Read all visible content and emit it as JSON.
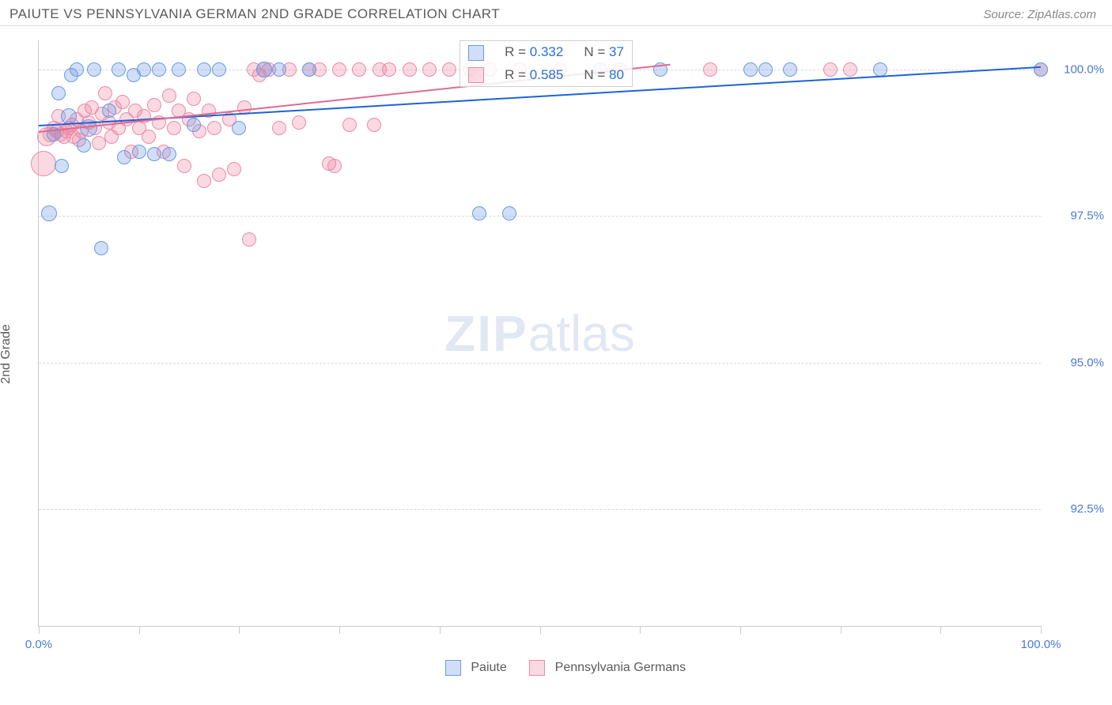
{
  "header": {
    "title": "PAIUTE VS PENNSYLVANIA GERMAN 2ND GRADE CORRELATION CHART",
    "source_prefix": "Source: ",
    "source_name": "ZipAtlas.com"
  },
  "chart": {
    "ylabel": "2nd Grade",
    "watermark_bold": "ZIP",
    "watermark_light": "atlas",
    "xlim": [
      0,
      100
    ],
    "ylim": [
      90.5,
      100.5
    ],
    "xtick_positions": [
      0,
      10,
      20,
      30,
      40,
      50,
      60,
      70,
      80,
      90,
      100
    ],
    "xtick_labels": {
      "0": "0.0%",
      "100": "100.0%"
    },
    "ytick_positions": [
      92.5,
      95.0,
      97.5,
      100.0
    ],
    "ytick_labels": [
      "92.5%",
      "95.0%",
      "97.5%",
      "100.0%"
    ],
    "grid_color": "#d8d8d8",
    "axis_color": "#cccccc",
    "background": "#ffffff",
    "series": [
      {
        "name": "Paiute",
        "fill": "rgba(100,150,230,0.30)",
        "stroke": "#6a9be0",
        "trend_color": "#1f62d6",
        "trend": {
          "x1": 0,
          "y1": 99.05,
          "x2": 100,
          "y2": 100.05
        },
        "stats": {
          "R": "0.332",
          "N": "37"
        },
        "points": [
          {
            "x": 1.0,
            "y": 97.55,
            "r": 10
          },
          {
            "x": 1.5,
            "y": 98.9,
            "r": 9
          },
          {
            "x": 2.0,
            "y": 99.6,
            "r": 9
          },
          {
            "x": 2.3,
            "y": 98.35,
            "r": 9
          },
          {
            "x": 3.0,
            "y": 99.2,
            "r": 10
          },
          {
            "x": 3.2,
            "y": 99.9,
            "r": 9
          },
          {
            "x": 3.8,
            "y": 100.0,
            "r": 9
          },
          {
            "x": 4.5,
            "y": 98.7,
            "r": 9
          },
          {
            "x": 5.0,
            "y": 99.0,
            "r": 11
          },
          {
            "x": 5.5,
            "y": 100.0,
            "r": 9
          },
          {
            "x": 6.2,
            "y": 96.95,
            "r": 9
          },
          {
            "x": 7.0,
            "y": 99.3,
            "r": 9
          },
          {
            "x": 8.0,
            "y": 100.0,
            "r": 9
          },
          {
            "x": 8.5,
            "y": 98.5,
            "r": 9
          },
          {
            "x": 9.5,
            "y": 99.9,
            "r": 9
          },
          {
            "x": 10.0,
            "y": 98.6,
            "r": 9
          },
          {
            "x": 10.5,
            "y": 100.0,
            "r": 9
          },
          {
            "x": 11.5,
            "y": 98.55,
            "r": 9
          },
          {
            "x": 12.0,
            "y": 100.0,
            "r": 9
          },
          {
            "x": 13.0,
            "y": 98.55,
            "r": 9
          },
          {
            "x": 14.0,
            "y": 100.0,
            "r": 9
          },
          {
            "x": 15.5,
            "y": 99.05,
            "r": 9
          },
          {
            "x": 16.5,
            "y": 100.0,
            "r": 9
          },
          {
            "x": 18.0,
            "y": 100.0,
            "r": 9
          },
          {
            "x": 20.0,
            "y": 99.0,
            "r": 9
          },
          {
            "x": 22.5,
            "y": 100.0,
            "r": 10
          },
          {
            "x": 24.0,
            "y": 100.0,
            "r": 9
          },
          {
            "x": 27.0,
            "y": 100.0,
            "r": 9
          },
          {
            "x": 44.0,
            "y": 97.55,
            "r": 9
          },
          {
            "x": 47.0,
            "y": 97.55,
            "r": 9
          },
          {
            "x": 56.0,
            "y": 100.0,
            "r": 9
          },
          {
            "x": 62.0,
            "y": 100.0,
            "r": 9
          },
          {
            "x": 71.0,
            "y": 100.0,
            "r": 9
          },
          {
            "x": 72.5,
            "y": 100.0,
            "r": 9
          },
          {
            "x": 75.0,
            "y": 100.0,
            "r": 9
          },
          {
            "x": 84.0,
            "y": 100.0,
            "r": 9
          },
          {
            "x": 100.0,
            "y": 100.0,
            "r": 9
          }
        ]
      },
      {
        "name": "Pennsylvania Germans",
        "fill": "rgba(240,130,160,0.30)",
        "stroke": "#e88ca8",
        "trend_color": "#e06a90",
        "trend": {
          "x1": 0,
          "y1": 98.95,
          "x2": 63,
          "y2": 100.1
        },
        "stats": {
          "R": "0.585",
          "N": "80"
        },
        "points": [
          {
            "x": 0.5,
            "y": 98.4,
            "r": 16
          },
          {
            "x": 0.8,
            "y": 98.85,
            "r": 12
          },
          {
            "x": 1.2,
            "y": 98.9,
            "r": 10
          },
          {
            "x": 1.5,
            "y": 99.0,
            "r": 9
          },
          {
            "x": 1.8,
            "y": 98.95,
            "r": 9
          },
          {
            "x": 2.0,
            "y": 99.2,
            "r": 9
          },
          {
            "x": 2.2,
            "y": 98.9,
            "r": 9
          },
          {
            "x": 2.5,
            "y": 98.85,
            "r": 9
          },
          {
            "x": 2.8,
            "y": 98.95,
            "r": 9
          },
          {
            "x": 3.0,
            "y": 99.0,
            "r": 9
          },
          {
            "x": 3.3,
            "y": 99.05,
            "r": 9
          },
          {
            "x": 3.5,
            "y": 98.85,
            "r": 9
          },
          {
            "x": 3.8,
            "y": 99.15,
            "r": 9
          },
          {
            "x": 4.0,
            "y": 98.8,
            "r": 9
          },
          {
            "x": 4.3,
            "y": 98.95,
            "r": 9
          },
          {
            "x": 4.6,
            "y": 99.3,
            "r": 9
          },
          {
            "x": 5.0,
            "y": 99.1,
            "r": 9
          },
          {
            "x": 5.3,
            "y": 99.35,
            "r": 9
          },
          {
            "x": 5.6,
            "y": 99.0,
            "r": 9
          },
          {
            "x": 6.0,
            "y": 98.75,
            "r": 9
          },
          {
            "x": 6.3,
            "y": 99.25,
            "r": 9
          },
          {
            "x": 6.6,
            "y": 99.6,
            "r": 9
          },
          {
            "x": 7.0,
            "y": 99.1,
            "r": 9
          },
          {
            "x": 7.3,
            "y": 98.85,
            "r": 9
          },
          {
            "x": 7.6,
            "y": 99.35,
            "r": 9
          },
          {
            "x": 8.0,
            "y": 99.0,
            "r": 9
          },
          {
            "x": 8.4,
            "y": 99.45,
            "r": 9
          },
          {
            "x": 8.8,
            "y": 99.15,
            "r": 9
          },
          {
            "x": 9.2,
            "y": 98.6,
            "r": 9
          },
          {
            "x": 9.6,
            "y": 99.3,
            "r": 9
          },
          {
            "x": 10.0,
            "y": 99.0,
            "r": 9
          },
          {
            "x": 10.5,
            "y": 99.2,
            "r": 9
          },
          {
            "x": 11.0,
            "y": 98.85,
            "r": 9
          },
          {
            "x": 11.5,
            "y": 99.4,
            "r": 9
          },
          {
            "x": 12.0,
            "y": 99.1,
            "r": 9
          },
          {
            "x": 12.5,
            "y": 98.6,
            "r": 9
          },
          {
            "x": 13.0,
            "y": 99.55,
            "r": 9
          },
          {
            "x": 13.5,
            "y": 99.0,
            "r": 9
          },
          {
            "x": 14.0,
            "y": 99.3,
            "r": 9
          },
          {
            "x": 14.5,
            "y": 98.35,
            "r": 9
          },
          {
            "x": 15.0,
            "y": 99.15,
            "r": 9
          },
          {
            "x": 15.5,
            "y": 99.5,
            "r": 9
          },
          {
            "x": 16.0,
            "y": 98.95,
            "r": 9
          },
          {
            "x": 16.5,
            "y": 98.1,
            "r": 9
          },
          {
            "x": 17.0,
            "y": 99.3,
            "r": 9
          },
          {
            "x": 17.5,
            "y": 99.0,
            "r": 9
          },
          {
            "x": 18.0,
            "y": 98.2,
            "r": 9
          },
          {
            "x": 19.0,
            "y": 99.15,
            "r": 9
          },
          {
            "x": 19.5,
            "y": 98.3,
            "r": 9
          },
          {
            "x": 20.5,
            "y": 99.35,
            "r": 9
          },
          {
            "x": 21.0,
            "y": 97.1,
            "r": 9
          },
          {
            "x": 21.5,
            "y": 100.0,
            "r": 9
          },
          {
            "x": 22.0,
            "y": 99.9,
            "r": 9
          },
          {
            "x": 22.5,
            "y": 100.0,
            "r": 10
          },
          {
            "x": 23.0,
            "y": 100.0,
            "r": 9
          },
          {
            "x": 24.0,
            "y": 99.0,
            "r": 9
          },
          {
            "x": 25.0,
            "y": 100.0,
            "r": 9
          },
          {
            "x": 26.0,
            "y": 99.1,
            "r": 9
          },
          {
            "x": 27.0,
            "y": 100.0,
            "r": 9
          },
          {
            "x": 28.0,
            "y": 100.0,
            "r": 9
          },
          {
            "x": 29.0,
            "y": 98.4,
            "r": 9
          },
          {
            "x": 29.5,
            "y": 98.35,
            "r": 9
          },
          {
            "x": 30.0,
            "y": 100.0,
            "r": 9
          },
          {
            "x": 31.0,
            "y": 99.05,
            "r": 9
          },
          {
            "x": 32.0,
            "y": 100.0,
            "r": 9
          },
          {
            "x": 33.5,
            "y": 99.05,
            "r": 9
          },
          {
            "x": 34.0,
            "y": 100.0,
            "r": 9
          },
          {
            "x": 35.0,
            "y": 100.0,
            "r": 9
          },
          {
            "x": 37.0,
            "y": 100.0,
            "r": 9
          },
          {
            "x": 39.0,
            "y": 100.0,
            "r": 9
          },
          {
            "x": 41.0,
            "y": 100.0,
            "r": 9
          },
          {
            "x": 43.0,
            "y": 100.0,
            "r": 9
          },
          {
            "x": 45.0,
            "y": 100.0,
            "r": 9
          },
          {
            "x": 48.0,
            "y": 100.0,
            "r": 9
          },
          {
            "x": 52.0,
            "y": 100.0,
            "r": 9
          },
          {
            "x": 58.0,
            "y": 100.0,
            "r": 9
          },
          {
            "x": 67.0,
            "y": 100.0,
            "r": 9
          },
          {
            "x": 79.0,
            "y": 100.0,
            "r": 9
          },
          {
            "x": 81.0,
            "y": 100.0,
            "r": 9
          },
          {
            "x": 100.0,
            "y": 100.0,
            "r": 9
          }
        ]
      }
    ],
    "stats_box": {
      "left_pct": 42,
      "top_pct": 0
    },
    "legend_labels": [
      "Paiute",
      "Pennsylvania Germans"
    ]
  }
}
